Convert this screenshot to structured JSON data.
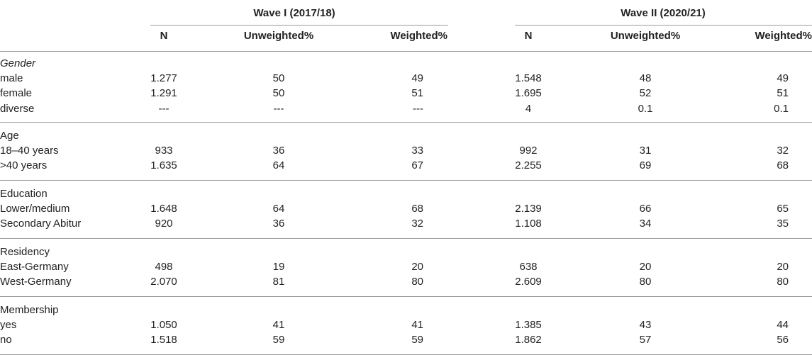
{
  "table": {
    "wave1_label": "Wave I (2017/18)",
    "wave2_label": "Wave II (2020/21)",
    "columns": [
      "N",
      "Unweighted%",
      "Weighted%"
    ],
    "sections": [
      {
        "title": "Gender",
        "italic": true,
        "rows": [
          {
            "label": "male",
            "w1": [
              "1.277",
              "50",
              "49"
            ],
            "w2": [
              "1.548",
              "48",
              "49"
            ]
          },
          {
            "label": "female",
            "w1": [
              "1.291",
              "50",
              "51"
            ],
            "w2": [
              "1.695",
              "52",
              "51"
            ]
          },
          {
            "label": "diverse",
            "w1": [
              "---",
              "---",
              "---"
            ],
            "w2": [
              "4",
              "0.1",
              "0.1"
            ]
          }
        ]
      },
      {
        "title": "Age",
        "italic": false,
        "rows": [
          {
            "label": "18–40 years",
            "w1": [
              "933",
              "36",
              "33"
            ],
            "w2": [
              "992",
              "31",
              "32"
            ]
          },
          {
            "label": ">40 years",
            "w1": [
              "1.635",
              "64",
              "67"
            ],
            "w2": [
              "2.255",
              "69",
              "68"
            ]
          }
        ]
      },
      {
        "title": "Education",
        "italic": false,
        "rows": [
          {
            "label": "Lower/medium",
            "w1": [
              "1.648",
              "64",
              "68"
            ],
            "w2": [
              "2.139",
              "66",
              "65"
            ]
          },
          {
            "label": "Secondary Abitur",
            "w1": [
              "920",
              "36",
              "32"
            ],
            "w2": [
              "1.108",
              "34",
              "35"
            ]
          }
        ]
      },
      {
        "title": "Residency",
        "italic": false,
        "rows": [
          {
            "label": "East-Germany",
            "w1": [
              "498",
              "19",
              "20"
            ],
            "w2": [
              "638",
              "20",
              "20"
            ]
          },
          {
            "label": "West-Germany",
            "w1": [
              "2.070",
              "81",
              "80"
            ],
            "w2": [
              "2.609",
              "80",
              "80"
            ]
          }
        ]
      },
      {
        "title": "Membership",
        "italic": false,
        "rows": [
          {
            "label": "yes",
            "w1": [
              "1.050",
              "41",
              "41"
            ],
            "w2": [
              "1.385",
              "43",
              "44"
            ]
          },
          {
            "label": "no",
            "w1": [
              "1.518",
              "59",
              "59"
            ],
            "w2": [
              "1.862",
              "57",
              "56"
            ]
          }
        ]
      }
    ]
  }
}
